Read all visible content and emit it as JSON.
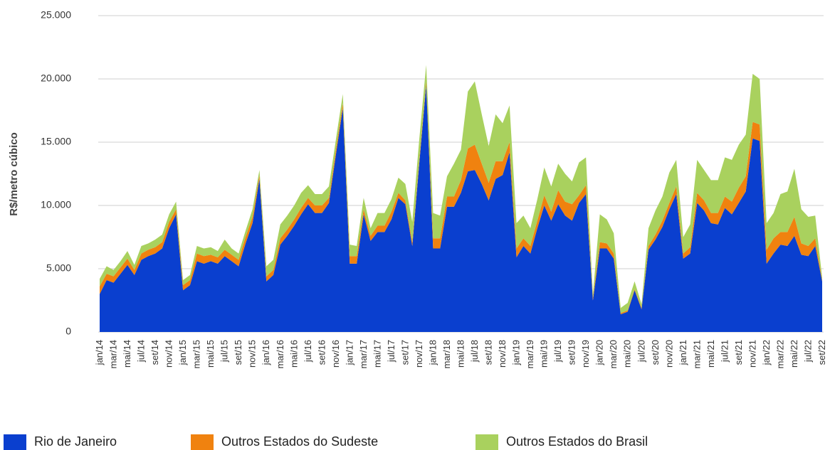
{
  "chart_data": {
    "type": "area",
    "stacked": true,
    "ylabel": "R$/metro cúbico",
    "categories": [
      "jan/14",
      null,
      "mar/14",
      null,
      "mai/14",
      null,
      "jul/14",
      null,
      "set/14",
      null,
      "nov/14",
      null,
      "jan/15",
      null,
      "mar/15",
      null,
      "mai/15",
      null,
      "jul/15",
      null,
      "set/15",
      null,
      "nov/15",
      null,
      "jan/16",
      null,
      "mar/16",
      null,
      "mai/16",
      null,
      "jul/16",
      null,
      "set/16",
      null,
      "nov/16",
      null,
      "jan/17",
      null,
      "mar/17",
      null,
      "mai/17",
      null,
      "jul/17",
      null,
      "set/17",
      null,
      "nov/17",
      null,
      "jan/18",
      null,
      "mar/18",
      null,
      "mai/18",
      null,
      "jul/18",
      null,
      "set/18",
      null,
      "nov/18",
      null,
      "jan/19",
      null,
      "mar/19",
      null,
      "mai/19",
      null,
      "jul/19",
      null,
      "set/19",
      null,
      "nov/19",
      null,
      "jan/20",
      null,
      "mar/20",
      null,
      "mai/20",
      null,
      "jul/20",
      null,
      "set/20",
      null,
      "nov/20",
      null,
      "jan/21",
      null,
      "mar/21",
      null,
      "mai/21",
      null,
      "jul/21",
      null,
      "set/21",
      null,
      "nov/21",
      null,
      "jan/22",
      null,
      "mar/22",
      null,
      "mai/22",
      null,
      "jul/22",
      null,
      "set/22"
    ],
    "series": [
      {
        "name": "Rio de Janeiro",
        "color": "#0a3fcf",
        "values": [
          3000,
          4100,
          3900,
          4600,
          5300,
          4500,
          5700,
          6000,
          6200,
          6600,
          8200,
          9300,
          3300,
          3700,
          5600,
          5400,
          5600,
          5400,
          6000,
          5600,
          5200,
          7000,
          8600,
          12100,
          4000,
          4500,
          6900,
          7600,
          8400,
          9300,
          10100,
          9400,
          9400,
          10200,
          14000,
          17700,
          5400,
          5400,
          9300,
          7200,
          7900,
          7900,
          8900,
          10600,
          10100,
          6800,
          13300,
          19500,
          6600,
          6600,
          9900,
          9900,
          11000,
          12700,
          12800,
          11700,
          10400,
          12100,
          12400,
          14200,
          5900,
          6800,
          6200,
          8200,
          10000,
          8800,
          10100,
          9200,
          8800,
          10200,
          10900,
          2500,
          6600,
          6600,
          5800,
          1400,
          1600,
          3300,
          1800,
          6500,
          7300,
          8300,
          9700,
          10900,
          5800,
          6200,
          10200,
          9600,
          8600,
          8500,
          9800,
          9300,
          10200,
          11100,
          15300,
          15100,
          5400,
          6200,
          6900,
          6800,
          7600,
          6100,
          6000,
          6800,
          4000
        ]
      },
      {
        "name": "Outros Estados do Sudeste",
        "color": "#f0820f",
        "values": [
          600,
          500,
          500,
          500,
          500,
          400,
          500,
          500,
          500,
          500,
          500,
          400,
          400,
          400,
          600,
          600,
          500,
          500,
          500,
          500,
          500,
          500,
          500,
          300,
          400,
          400,
          500,
          500,
          500,
          500,
          500,
          600,
          600,
          400,
          400,
          400,
          600,
          600,
          400,
          400,
          500,
          500,
          600,
          400,
          300,
          300,
          300,
          300,
          800,
          800,
          800,
          800,
          1000,
          1800,
          2000,
          1600,
          1400,
          1400,
          1100,
          800,
          700,
          600,
          600,
          600,
          800,
          700,
          1100,
          1100,
          1300,
          600,
          700,
          200,
          500,
          400,
          400,
          100,
          100,
          100,
          100,
          300,
          400,
          500,
          500,
          600,
          400,
          500,
          800,
          800,
          800,
          900,
          900,
          1000,
          1200,
          1200,
          1300,
          1300,
          1100,
          1200,
          1000,
          1100,
          1500,
          900,
          800,
          600,
          100
        ]
      },
      {
        "name": "Outros Estados do Brasil",
        "color": "#a9d15e",
        "values": [
          600,
          600,
          500,
          500,
          600,
          400,
          600,
          500,
          600,
          600,
          600,
          600,
          400,
          400,
          600,
          600,
          600,
          500,
          800,
          500,
          500,
          500,
          600,
          400,
          800,
          800,
          1100,
          1100,
          1100,
          1200,
          1000,
          900,
          900,
          900,
          800,
          700,
          900,
          800,
          900,
          600,
          1000,
          1000,
          1000,
          1200,
          1300,
          1600,
          1600,
          1300,
          2000,
          1800,
          1600,
          2600,
          2400,
          4500,
          5000,
          3900,
          2900,
          3700,
          3000,
          2900,
          2000,
          1800,
          1400,
          1700,
          2200,
          2000,
          2100,
          2200,
          1800,
          2600,
          2200,
          300,
          2200,
          1900,
          1600,
          400,
          600,
          600,
          300,
          1400,
          1900,
          1900,
          2400,
          2100,
          1300,
          1800,
          2600,
          2400,
          2600,
          2600,
          3100,
          3300,
          3400,
          3300,
          3800,
          3600,
          2100,
          2000,
          3000,
          3200,
          3800,
          2700,
          2300,
          1800,
          200
        ]
      }
    ],
    "ylim": [
      0,
      25000
    ],
    "yticks": [
      {
        "value": 0,
        "label": "0"
      },
      {
        "value": 5000,
        "label": "5.000"
      },
      {
        "value": 10000,
        "label": "10.000"
      },
      {
        "value": 15000,
        "label": "15.000"
      },
      {
        "value": 20000,
        "label": "20.000"
      },
      {
        "value": 25000,
        "label": "25.000"
      }
    ],
    "grid": true,
    "legend": "bottom"
  }
}
